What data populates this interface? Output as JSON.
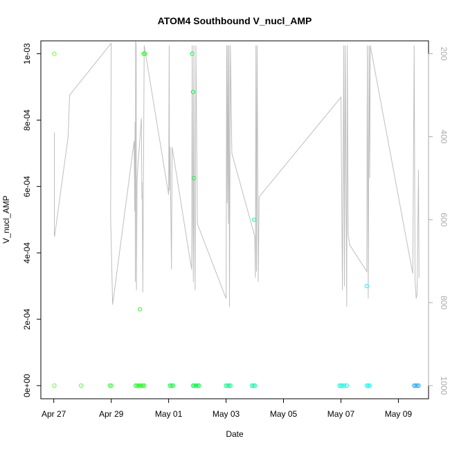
{
  "chart_data": {
    "type": "scatter",
    "title": "ATOM4 Southbound V_nucl_AMP",
    "xlabel": "Date",
    "ylabel": "V_nucl_AMP",
    "x_ticks": [
      "Apr 27",
      "Apr 29",
      "May 01",
      "May 03",
      "May 05",
      "May 07",
      "May 09"
    ],
    "x_tick_days": [
      0,
      2,
      4,
      6,
      8,
      10,
      12
    ],
    "xlim_days": [
      -0.45,
      13.05
    ],
    "ylim": [
      0,
      0.00104
    ],
    "y_ticks": [
      0,
      0.0002,
      0.0004,
      0.0006,
      0.0008,
      0.001
    ],
    "y_tick_labels": [
      "0e+00",
      "2e-04",
      "4e-04",
      "6e-04",
      "8e-04",
      "1e-03"
    ],
    "right_axis": {
      "color": "#aaaaaa",
      "ticks": [
        200,
        400,
        600,
        800,
        1000
      ],
      "lim": [
        1020,
        180
      ]
    },
    "grid": false,
    "legend": "none",
    "colors": {
      "line": "#bebebe",
      "axis": "#000000",
      "right_axis": "#aaaaaa"
    },
    "points": [
      {
        "d": 0.02,
        "v": 0.001,
        "c": "#66ff33"
      },
      {
        "d": 0.02,
        "v": 0.0,
        "c": "#66ff33"
      },
      {
        "d": 0.95,
        "v": 0.0,
        "c": "#55ff33"
      },
      {
        "d": 1.95,
        "v": 0.0,
        "c": "#33ff33"
      },
      {
        "d": 2.0,
        "v": 0.0,
        "c": "#33ff33"
      },
      {
        "d": 2.85,
        "v": 0.0,
        "c": "#22ff22"
      },
      {
        "d": 2.9,
        "v": 0.0,
        "c": "#22ff22"
      },
      {
        "d": 2.95,
        "v": 0.0,
        "c": "#22ff22"
      },
      {
        "d": 3.0,
        "v": 0.0,
        "c": "#22ff22"
      },
      {
        "d": 3.05,
        "v": 0.0,
        "c": "#22ff22"
      },
      {
        "d": 3.1,
        "v": 0.0,
        "c": "#22ff22"
      },
      {
        "d": 3.15,
        "v": 0.0,
        "c": "#22ff22"
      },
      {
        "d": 3.0,
        "v": 0.00023,
        "c": "#33ff22"
      },
      {
        "d": 3.13,
        "v": 0.001,
        "c": "#22ff22"
      },
      {
        "d": 3.17,
        "v": 0.001,
        "c": "#22ff22"
      },
      {
        "d": 4.05,
        "v": 0.0,
        "c": "#00ff33"
      },
      {
        "d": 4.1,
        "v": 0.0,
        "c": "#00ff33"
      },
      {
        "d": 4.15,
        "v": 0.0,
        "c": "#00ff33"
      },
      {
        "d": 4.82,
        "v": 0.001,
        "c": "#00ff44"
      },
      {
        "d": 4.85,
        "v": 0.000885,
        "c": "#00ff44"
      },
      {
        "d": 4.88,
        "v": 0.000625,
        "c": "#00ff44"
      },
      {
        "d": 4.85,
        "v": 0.0,
        "c": "#00ff44"
      },
      {
        "d": 4.9,
        "v": 0.0,
        "c": "#00ff44"
      },
      {
        "d": 4.95,
        "v": 0.0,
        "c": "#00ff44"
      },
      {
        "d": 5.0,
        "v": 0.0,
        "c": "#00ff44"
      },
      {
        "d": 5.05,
        "v": 0.0,
        "c": "#00ff44"
      },
      {
        "d": 6.0,
        "v": 0.0,
        "c": "#00ff88"
      },
      {
        "d": 6.05,
        "v": 0.0,
        "c": "#00ff88"
      },
      {
        "d": 6.1,
        "v": 0.0,
        "c": "#00ff88"
      },
      {
        "d": 6.15,
        "v": 0.0,
        "c": "#00ff88"
      },
      {
        "d": 6.9,
        "v": 0.0,
        "c": "#00ffaa"
      },
      {
        "d": 6.95,
        "v": 0.0,
        "c": "#00ffaa"
      },
      {
        "d": 7.0,
        "v": 0.0,
        "c": "#00ffaa"
      },
      {
        "d": 6.98,
        "v": 0.0005,
        "c": "#00ffaa"
      },
      {
        "d": 9.95,
        "v": 0.0,
        "c": "#00ffdd"
      },
      {
        "d": 10.0,
        "v": 0.0,
        "c": "#00ffdd"
      },
      {
        "d": 10.05,
        "v": 0.0,
        "c": "#00ffdd"
      },
      {
        "d": 10.12,
        "v": 0.0,
        "c": "#00ffdd"
      },
      {
        "d": 10.2,
        "v": 0.0,
        "c": "#00ffdd"
      },
      {
        "d": 10.9,
        "v": 0.0003,
        "c": "#00ffff"
      },
      {
        "d": 10.9,
        "v": 0.0,
        "c": "#00ffff"
      },
      {
        "d": 10.95,
        "v": 0.0,
        "c": "#00ffff"
      },
      {
        "d": 11.0,
        "v": 0.0,
        "c": "#00ffff"
      },
      {
        "d": 12.55,
        "v": 0.0,
        "c": "#22aaff"
      },
      {
        "d": 12.6,
        "v": 0.0,
        "c": "#22aaff"
      },
      {
        "d": 12.65,
        "v": 0.0,
        "c": "#22aaff"
      },
      {
        "d": 12.7,
        "v": 0.0,
        "c": "#22aaff"
      }
    ],
    "line_series": {
      "name": "",
      "x_days": [
        0.02,
        0.02,
        0.03,
        0.5,
        0.55,
        2.0,
        2.0,
        1.98,
        2.05,
        2.8,
        2.82,
        2.83,
        2.84,
        2.85,
        2.87,
        2.88,
        2.9,
        3.05,
        3.07,
        3.08,
        3.1,
        3.15,
        4.0,
        4.02,
        4.03,
        4.05,
        4.1,
        4.12,
        4.8,
        4.82,
        4.84,
        4.86,
        4.88,
        4.9,
        4.92,
        4.95,
        5.0,
        6.0,
        6.02,
        6.04,
        6.06,
        6.08,
        6.1,
        6.12,
        6.15,
        6.2,
        7.0,
        7.02,
        7.04,
        7.06,
        7.08,
        7.1,
        7.12,
        7.15,
        10.0,
        10.05,
        10.1,
        10.12,
        10.15,
        10.2,
        10.22,
        10.25,
        10.3,
        10.9,
        10.92,
        10.95,
        10.98,
        11.0,
        11.02,
        12.5,
        12.55,
        12.58,
        12.62,
        12.65,
        12.7,
        12.72
      ],
      "right_values": [
        390,
        640,
        640,
        400,
        300,
        175,
        175,
        595,
        805,
        410,
        580,
        365,
        750,
        170,
        180,
        770,
        500,
        355,
        550,
        510,
        775,
        180,
        540,
        180,
        530,
        425,
        720,
        425,
        720,
        180,
        580,
        750,
        180,
        570,
        770,
        180,
        610,
        790,
        180,
        560,
        180,
        610,
        180,
        810,
        180,
        440,
        640,
        740,
        180,
        725,
        180,
        440,
        750,
        545,
        305,
        770,
        180,
        760,
        180,
        810,
        180,
        635,
        660,
        725,
        180,
        790,
        180,
        500,
        180,
        730,
        180,
        745,
        790,
        780,
        480,
        740
      ]
    }
  }
}
